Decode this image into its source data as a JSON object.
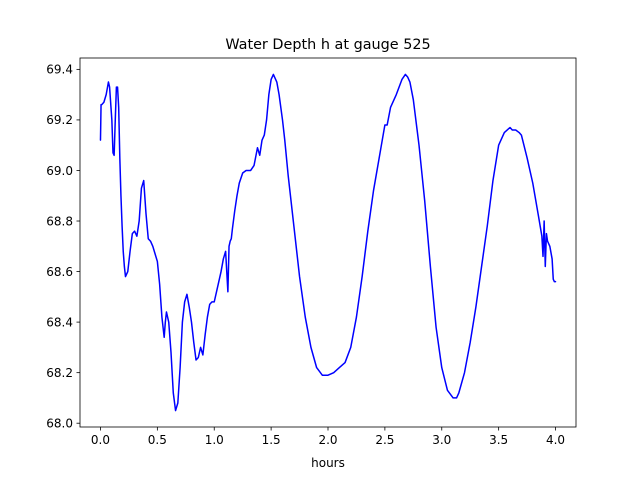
{
  "chart_data": {
    "type": "line",
    "title": "Water Depth h at gauge 525",
    "xlabel": "hours",
    "ylabel": "",
    "xlim": [
      -0.18,
      4.18
    ],
    "ylim": [
      67.985,
      69.445
    ],
    "xticks": [
      0.0,
      0.5,
      1.0,
      1.5,
      2.0,
      2.5,
      3.0,
      3.5,
      4.0
    ],
    "xtick_labels": [
      "0.0",
      "0.5",
      "1.0",
      "1.5",
      "2.0",
      "2.5",
      "3.0",
      "3.5",
      "4.0"
    ],
    "yticks": [
      68.0,
      68.2,
      68.4,
      68.6,
      68.8,
      69.0,
      69.2,
      69.4
    ],
    "ytick_labels": [
      "68.0",
      "68.2",
      "68.4",
      "68.6",
      "68.8",
      "69.0",
      "69.2",
      "69.4"
    ],
    "grid": false,
    "series": [
      {
        "color": "#0000ff",
        "x": [
          0.0,
          0.005,
          0.01,
          0.03,
          0.05,
          0.07,
          0.08,
          0.1,
          0.11,
          0.12,
          0.13,
          0.14,
          0.15,
          0.16,
          0.17,
          0.18,
          0.19,
          0.2,
          0.21,
          0.22,
          0.24,
          0.26,
          0.28,
          0.3,
          0.32,
          0.34,
          0.36,
          0.38,
          0.4,
          0.42,
          0.44,
          0.46,
          0.48,
          0.5,
          0.52,
          0.54,
          0.56,
          0.57,
          0.58,
          0.59,
          0.6,
          0.62,
          0.64,
          0.66,
          0.68,
          0.7,
          0.72,
          0.74,
          0.76,
          0.78,
          0.8,
          0.82,
          0.84,
          0.86,
          0.88,
          0.9,
          0.92,
          0.94,
          0.96,
          0.98,
          1.0,
          1.02,
          1.04,
          1.06,
          1.08,
          1.1,
          1.12,
          1.13,
          1.14,
          1.15,
          1.16,
          1.18,
          1.2,
          1.22,
          1.25,
          1.28,
          1.3,
          1.32,
          1.35,
          1.38,
          1.4,
          1.42,
          1.44,
          1.46,
          1.48,
          1.5,
          1.52,
          1.55,
          1.57,
          1.6,
          1.62,
          1.65,
          1.7,
          1.75,
          1.8,
          1.85,
          1.9,
          1.95,
          2.0,
          2.05,
          2.1,
          2.15,
          2.2,
          2.25,
          2.3,
          2.35,
          2.4,
          2.45,
          2.5,
          2.52,
          2.55,
          2.6,
          2.65,
          2.68,
          2.7,
          2.72,
          2.75,
          2.8,
          2.85,
          2.9,
          2.95,
          3.0,
          3.05,
          3.1,
          3.13,
          3.15,
          3.2,
          3.25,
          3.3,
          3.35,
          3.4,
          3.45,
          3.5,
          3.55,
          3.6,
          3.62,
          3.65,
          3.68,
          3.7,
          3.75,
          3.8,
          3.85,
          3.88,
          3.89,
          3.9,
          3.91,
          3.92,
          3.93,
          3.95,
          3.97,
          3.98,
          3.99,
          4.0
        ],
        "y": [
          69.12,
          69.26,
          69.26,
          69.27,
          69.3,
          69.35,
          69.33,
          69.2,
          69.07,
          69.06,
          69.2,
          69.33,
          69.33,
          69.25,
          69.05,
          68.9,
          68.78,
          68.68,
          68.62,
          68.58,
          68.6,
          68.68,
          68.75,
          68.76,
          68.74,
          68.8,
          68.93,
          68.96,
          68.83,
          68.73,
          68.72,
          68.7,
          68.67,
          68.64,
          68.55,
          68.42,
          68.34,
          68.4,
          68.44,
          68.42,
          68.4,
          68.28,
          68.12,
          68.05,
          68.08,
          68.22,
          68.4,
          68.48,
          68.51,
          68.46,
          68.4,
          68.32,
          68.25,
          68.26,
          68.3,
          68.27,
          68.35,
          68.42,
          68.47,
          68.48,
          68.48,
          68.52,
          68.56,
          68.6,
          68.65,
          68.68,
          68.52,
          68.7,
          68.72,
          68.73,
          68.77,
          68.84,
          68.9,
          68.95,
          68.99,
          69.0,
          69.0,
          69.0,
          69.02,
          69.09,
          69.06,
          69.12,
          69.14,
          69.2,
          69.3,
          69.36,
          69.38,
          69.35,
          69.3,
          69.2,
          69.12,
          68.98,
          68.78,
          68.58,
          68.42,
          68.3,
          68.22,
          68.19,
          68.19,
          68.2,
          68.22,
          68.24,
          68.3,
          68.42,
          68.58,
          68.76,
          68.92,
          69.05,
          69.18,
          69.18,
          69.25,
          69.3,
          69.36,
          69.38,
          69.37,
          69.35,
          69.28,
          69.1,
          68.88,
          68.62,
          68.38,
          68.22,
          68.13,
          68.1,
          68.1,
          68.12,
          68.2,
          68.32,
          68.46,
          68.62,
          68.78,
          68.96,
          69.1,
          69.15,
          69.17,
          69.16,
          69.16,
          69.15,
          69.14,
          69.05,
          68.95,
          68.82,
          68.74,
          68.66,
          68.8,
          68.62,
          68.75,
          68.72,
          68.7,
          68.65,
          68.57,
          68.56,
          68.56
        ]
      }
    ]
  }
}
